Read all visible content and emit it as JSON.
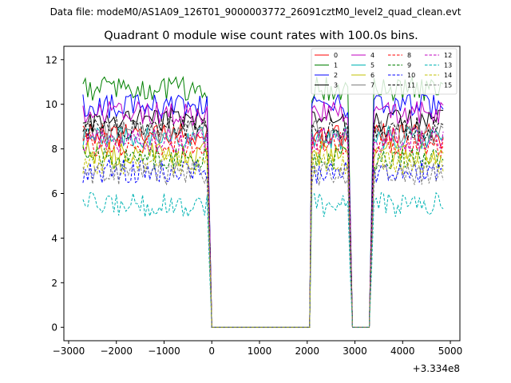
{
  "chart_data": {
    "type": "line",
    "suptitle": "Data file: modeM0/AS1A09_126T01_9000003772_26091cztM0_level2_quad_clean.evt",
    "title": "Quadrant 0 module wise count rates with 100.0s bins.",
    "xlabel": "",
    "ylabel": "",
    "offset_label": "+3.334e8",
    "xlim": [
      -3100,
      5200
    ],
    "ylim": [
      -0.6,
      12.6
    ],
    "xticks": [
      -3000,
      -2000,
      -1000,
      0,
      1000,
      2000,
      3000,
      4000,
      5000
    ],
    "xtick_labels": [
      "−3000",
      "−2000",
      "−1000",
      "0",
      "1000",
      "2000",
      "3000",
      "4000",
      "5000"
    ],
    "yticks": [
      0,
      2,
      4,
      6,
      8,
      10,
      12
    ],
    "ytick_labels": [
      "0",
      "2",
      "4",
      "6",
      "8",
      "10",
      "12"
    ],
    "grid": false,
    "legend_position": "top-right",
    "segments": [
      {
        "x0": -2700,
        "x1": -150,
        "shape": "high"
      },
      {
        "x0": -100,
        "x1": 0,
        "shape": "fall"
      },
      {
        "x0": 50,
        "x1": 2050,
        "shape": "zero"
      },
      {
        "x0": 2100,
        "x1": 2800,
        "shape": "high"
      },
      {
        "x0": 2850,
        "x1": 2950,
        "shape": "fall"
      },
      {
        "x0": 3000,
        "x1": 3250,
        "shape": "zero"
      },
      {
        "x0": 3300,
        "x1": 3400,
        "shape": "rise"
      },
      {
        "x0": 3450,
        "x1": 4850,
        "shape": "high"
      }
    ],
    "series": [
      {
        "name": "0",
        "color": "#ff0000",
        "dash": "solid",
        "level": 8.6
      },
      {
        "name": "1",
        "color": "#008000",
        "dash": "solid",
        "level": 10.7
      },
      {
        "name": "2",
        "color": "#0000ff",
        "dash": "solid",
        "level": 9.9
      },
      {
        "name": "3",
        "color": "#000000",
        "dash": "solid",
        "level": 9.3
      },
      {
        "name": "4",
        "color": "#c000c0",
        "dash": "solid",
        "level": 9.6
      },
      {
        "name": "5",
        "color": "#00b3b3",
        "dash": "solid",
        "level": 8.5
      },
      {
        "name": "6",
        "color": "#c0c000",
        "dash": "solid",
        "level": 7.8
      },
      {
        "name": "7",
        "color": "#808080",
        "dash": "solid",
        "level": 8.7
      },
      {
        "name": "8",
        "color": "#ff0000",
        "dash": "dashed",
        "level": 8.2
      },
      {
        "name": "9",
        "color": "#008000",
        "dash": "dashed",
        "level": 7.6
      },
      {
        "name": "10",
        "color": "#0000ff",
        "dash": "dashed",
        "level": 7.0
      },
      {
        "name": "11",
        "color": "#000000",
        "dash": "dashed",
        "level": 8.9
      },
      {
        "name": "12",
        "color": "#c000c0",
        "dash": "dashed",
        "level": 8.4
      },
      {
        "name": "13",
        "color": "#00b3b3",
        "dash": "dashed",
        "level": 5.5
      },
      {
        "name": "14",
        "color": "#c0c000",
        "dash": "dashed",
        "level": 7.4
      },
      {
        "name": "15",
        "color": "#808080",
        "dash": "dashed",
        "level": 6.9
      }
    ]
  }
}
